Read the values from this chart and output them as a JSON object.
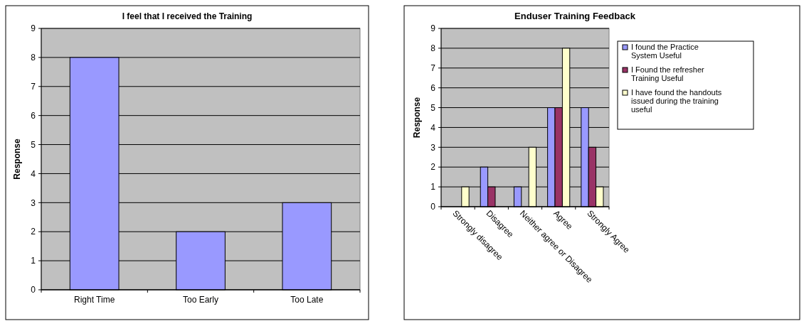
{
  "chart_data": [
    {
      "type": "bar",
      "title": "I feel that I received the Training",
      "ylabel": "Response",
      "categories": [
        "Right Time",
        "Too Early",
        "Too Late"
      ],
      "values": [
        8,
        2,
        3
      ],
      "color": "#9999ff",
      "ylim": [
        0,
        9
      ],
      "yticks": [
        0,
        1,
        2,
        3,
        4,
        5,
        6,
        7,
        8,
        9
      ],
      "grid": "y",
      "legend": false
    },
    {
      "type": "bar",
      "title": "Enduser Training Feedback",
      "ylabel": "Response",
      "categories": [
        "Strongly disagree",
        "Disagree",
        "Neither agree or Disagree",
        "Agree",
        "Strongly Agree"
      ],
      "series": [
        {
          "name": "I found the Practice System Useful",
          "color": "#9999ff",
          "values": [
            0,
            2,
            1,
            5,
            5
          ]
        },
        {
          "name": "I Found the refresher Training Useful",
          "color": "#993366",
          "values": [
            0,
            1,
            0,
            5,
            3
          ]
        },
        {
          "name": "I have found the handouts issued during the training useful",
          "color": "#ffffcc",
          "values": [
            1,
            0,
            3,
            8,
            1
          ]
        }
      ],
      "ylim": [
        0,
        9
      ],
      "yticks": [
        0,
        1,
        2,
        3,
        4,
        5,
        6,
        7,
        8,
        9
      ],
      "grid": "y",
      "legend": "right"
    }
  ]
}
